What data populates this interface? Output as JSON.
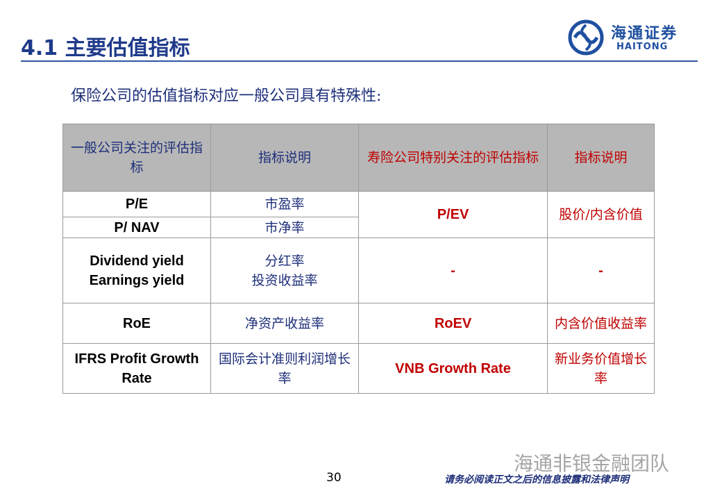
{
  "header": {
    "title": "4.1 主要估值指标",
    "logo_cn": "海通证券",
    "logo_en": "HAITONG"
  },
  "intro": "保险公司的估值指标对应一般公司具有特殊性:",
  "table": {
    "columns": [
      "一般公司关注的评估指标",
      "指标说明",
      "寿险公司特别关注的评估指标",
      "指标说明"
    ],
    "rows": [
      [
        "P/E",
        "市盈率",
        "P/EV",
        "股价/内含价值"
      ],
      [
        "P/ NAV",
        "市净率"
      ],
      [
        [
          "Dividend yield",
          "Earnings yield"
        ],
        [
          "分红率",
          "投资收益率"
        ],
        "-",
        "-"
      ],
      [
        "RoE",
        "净资产收益率",
        "RoEV",
        "内含价值收益率"
      ],
      [
        "IFRS Profit Growth Rate",
        "国际会计准则利润增长率",
        "VNB Growth Rate",
        "新业务价值增长率"
      ]
    ]
  },
  "footer": {
    "page": "30",
    "disclaimer": "请务必阅读正文之后的信息披露和法律声明",
    "watermark": "海通非银金融团队"
  }
}
